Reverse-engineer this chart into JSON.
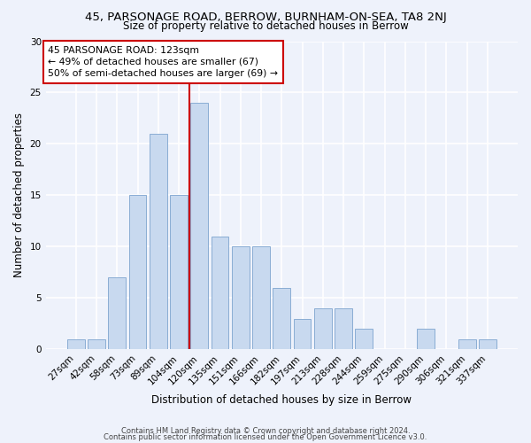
{
  "title1": "45, PARSONAGE ROAD, BERROW, BURNHAM-ON-SEA, TA8 2NJ",
  "title2": "Size of property relative to detached houses in Berrow",
  "xlabel": "Distribution of detached houses by size in Berrow",
  "ylabel": "Number of detached properties",
  "bar_labels": [
    "27sqm",
    "42sqm",
    "58sqm",
    "73sqm",
    "89sqm",
    "104sqm",
    "120sqm",
    "135sqm",
    "151sqm",
    "166sqm",
    "182sqm",
    "197sqm",
    "213sqm",
    "228sqm",
    "244sqm",
    "259sqm",
    "275sqm",
    "290sqm",
    "306sqm",
    "321sqm",
    "337sqm"
  ],
  "bar_values": [
    1,
    1,
    7,
    15,
    21,
    15,
    24,
    11,
    10,
    10,
    6,
    3,
    4,
    4,
    2,
    0,
    0,
    2,
    0,
    1,
    1
  ],
  "bar_color": "#c8d9ef",
  "bar_edge_color": "#8aadd4",
  "vline_color": "#cc0000",
  "annotation_text": "45 PARSONAGE ROAD: 123sqm\n← 49% of detached houses are smaller (67)\n50% of semi-detached houses are larger (69) →",
  "annotation_box_color": "#ffffff",
  "annotation_box_edge": "#cc0000",
  "ylim": [
    0,
    30
  ],
  "yticks": [
    0,
    5,
    10,
    15,
    20,
    25,
    30
  ],
  "footer1": "Contains HM Land Registry data © Crown copyright and database right 2024.",
  "footer2": "Contains public sector information licensed under the Open Government Licence v3.0.",
  "bg_color": "#eef2fb"
}
